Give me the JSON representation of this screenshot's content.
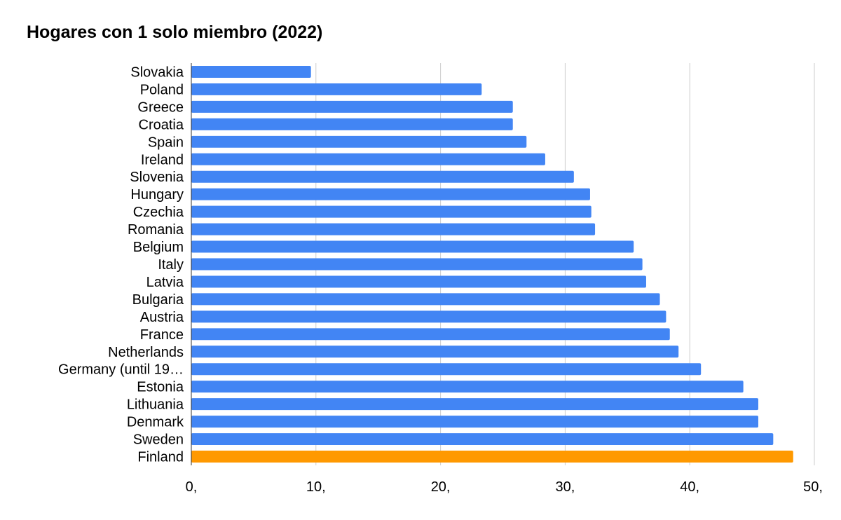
{
  "chart_data": {
    "type": "bar",
    "orientation": "horizontal",
    "title": "Hogares con 1 solo miembro (2022)",
    "xlabel": "",
    "ylabel": "",
    "xlim": [
      0,
      50
    ],
    "x_ticks": [
      0,
      10,
      20,
      30,
      40,
      50
    ],
    "x_tick_labels": [
      "0,",
      "10,",
      "20,",
      "30,",
      "40,",
      "50,"
    ],
    "grid": "vertical",
    "categories": [
      "Slovakia",
      "Poland",
      "Greece",
      "Croatia",
      "Spain",
      "Ireland",
      "Slovenia",
      "Hungary",
      "Czechia",
      "Romania",
      "Belgium",
      "Italy",
      "Latvia",
      "Bulgaria",
      "Austria",
      "France",
      "Netherlands",
      "Germany (until 19…",
      "Estonia",
      "Lithuania",
      "Denmark",
      "Sweden",
      "Finland"
    ],
    "values": [
      9.6,
      23.3,
      25.8,
      25.8,
      26.9,
      28.4,
      30.7,
      32.0,
      32.1,
      32.4,
      35.5,
      36.2,
      36.5,
      37.6,
      38.1,
      38.4,
      39.1,
      40.9,
      44.3,
      45.5,
      45.5,
      46.7,
      48.3
    ],
    "colors": {
      "default": "#4285F4",
      "highlight": "#FF9900",
      "grid": "#CCCCCC",
      "axis": "#333333"
    },
    "highlight_category": "Finland"
  }
}
